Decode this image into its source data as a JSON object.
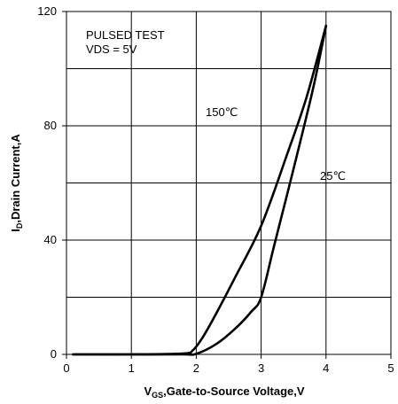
{
  "chart_data": {
    "type": "line",
    "xlabel": {
      "main": "V",
      "sub": "GS",
      "rest": ",Gate-to-Source Voltage,V"
    },
    "ylabel": {
      "main": "I",
      "sub": "D",
      "rest": ",Drain Current,A"
    },
    "xlim": [
      0,
      5
    ],
    "ylim": [
      0,
      120
    ],
    "x_ticks": [
      0,
      1,
      2,
      3,
      4,
      5
    ],
    "y_ticks": [
      0,
      40,
      80,
      120
    ],
    "y_grid": [
      0,
      20,
      40,
      60,
      80,
      100,
      120
    ],
    "grid": true,
    "annotations": [
      "PULSED TEST",
      "VDS = 5V"
    ],
    "series": [
      {
        "name": "150℃",
        "x": [
          0.1,
          1.0,
          1.8,
          1.95,
          2.1,
          2.3,
          2.6,
          3.0,
          3.4,
          3.7,
          4.0
        ],
        "y": [
          0.0,
          0.0,
          0.3,
          1.5,
          6.0,
          14.0,
          27.0,
          45.0,
          70.0,
          90.0,
          115.0
        ]
      },
      {
        "name": "25℃",
        "x": [
          0.1,
          1.0,
          1.8,
          2.0,
          2.3,
          2.6,
          2.85,
          3.0,
          3.2,
          3.5,
          3.8,
          4.0
        ],
        "y": [
          0.0,
          0.0,
          0.0,
          0.2,
          3.5,
          9.0,
          15.0,
          20.0,
          38.0,
          65.0,
          93.0,
          115.0
        ]
      }
    ]
  }
}
